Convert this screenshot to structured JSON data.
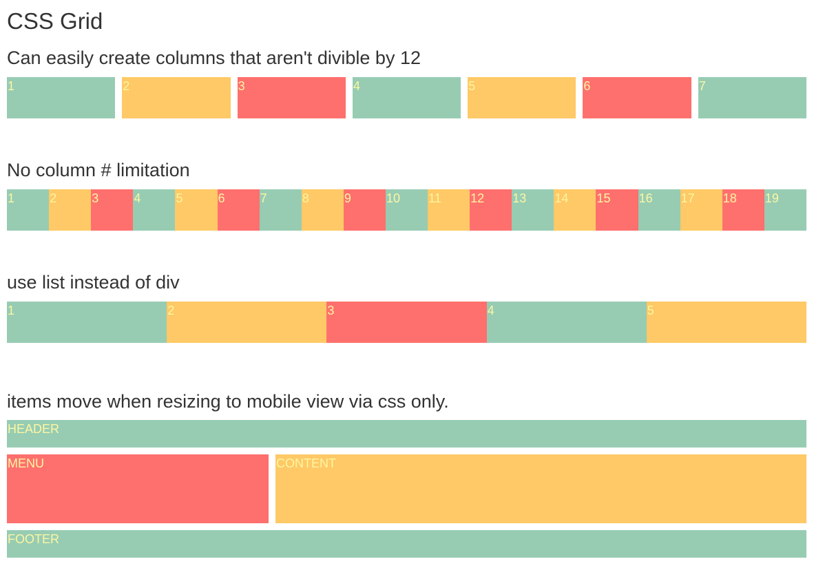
{
  "page": {
    "title": "CSS Grid"
  },
  "sections": [
    {
      "title": "Can easily create columns that aren't divible by 12",
      "items": [
        "1",
        "2",
        "3",
        "4",
        "5",
        "6",
        "7"
      ]
    },
    {
      "title": "No column # limitation",
      "items": [
        "1",
        "2",
        "3",
        "4",
        "5",
        "6",
        "7",
        "8",
        "9",
        "10",
        "11",
        "12",
        "13",
        "14",
        "15",
        "16",
        "17",
        "18",
        "19"
      ]
    },
    {
      "title": "use list instead of div",
      "items": [
        "1",
        "2",
        "3",
        "4",
        "5"
      ]
    },
    {
      "title": "items move when resizing to mobile view via css only.",
      "layout": {
        "header": "HEADER",
        "menu": "MENU",
        "content": "CONTENT",
        "footer": "FOOTER"
      }
    }
  ],
  "colors": {
    "green": "#97ccb3",
    "yellow": "#fec966",
    "red": "#fe706d",
    "label": "#fdf6a3",
    "text": "#333333"
  }
}
